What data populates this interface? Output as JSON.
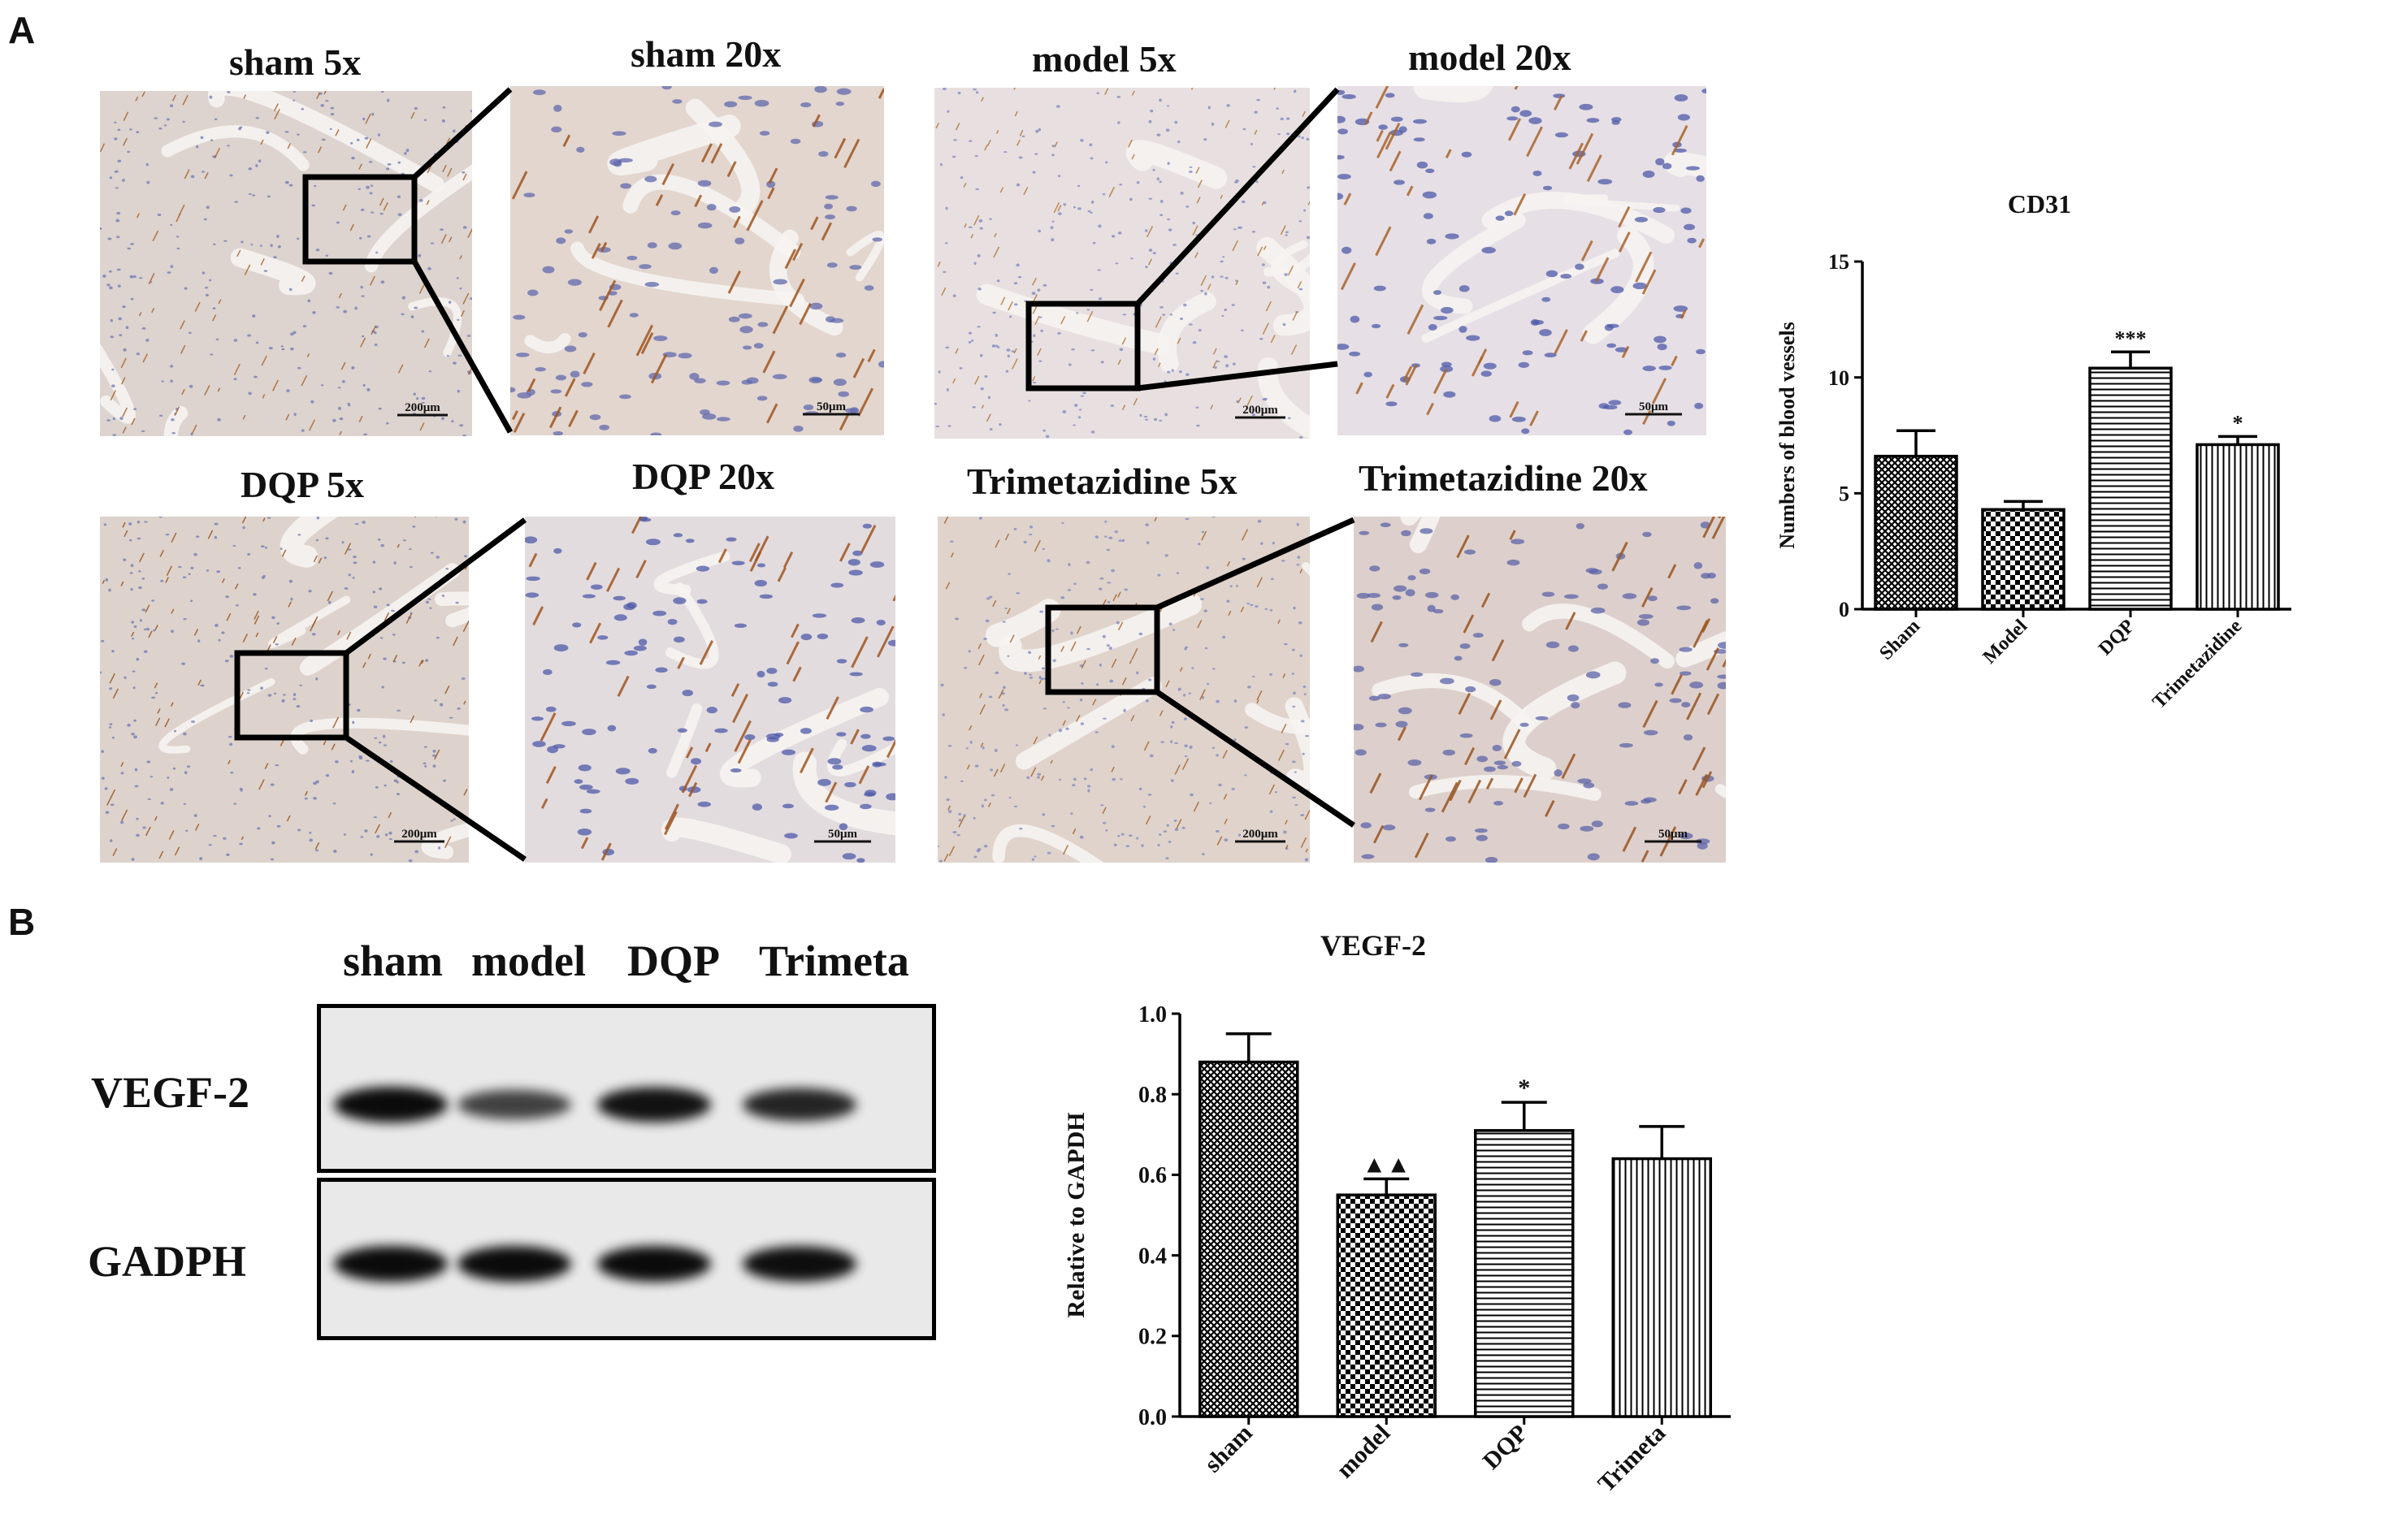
{
  "panel_letters": {
    "a": "A",
    "b": "B"
  },
  "micrographs": [
    {
      "label": "sham 5x",
      "scale": "200μm",
      "tissue": "#ddd3cf",
      "stain": "#a7642a",
      "nuclei": "#6d78b3"
    },
    {
      "label": "sham 20x",
      "scale": "50μm",
      "tissue": "#e2d6cf",
      "stain": "#a0551f",
      "nuclei": "#6068ac"
    },
    {
      "label": "model 5x",
      "scale": "200μm",
      "tissue": "#e8e0e0",
      "stain": "#b07a3e",
      "nuclei": "#7c86bd"
    },
    {
      "label": "model 20x",
      "scale": "50μm",
      "tissue": "#e6dfe5",
      "stain": "#a8642c",
      "nuclei": "#4e5aa8"
    },
    {
      "label": "DQP 5x",
      "scale": "200μm",
      "tissue": "#ddd3cc",
      "stain": "#9a5420",
      "nuclei": "#6d78b3"
    },
    {
      "label": "DQP 20x",
      "scale": "50μm",
      "tissue": "#e3dcdf",
      "stain": "#a0551f",
      "nuclei": "#4e5aa8"
    },
    {
      "label": "Trimetazidine 5x",
      "scale": "200μm",
      "tissue": "#dfd3cc",
      "stain": "#a7642a",
      "nuclei": "#7c86bd"
    },
    {
      "label": "Trimetazidine 20x",
      "scale": "50μm",
      "tissue": "#ddd0cc",
      "stain": "#9a5420",
      "nuclei": "#5c64a8"
    }
  ],
  "western_blot": {
    "lanes": [
      "sham",
      "model",
      "DQP",
      "Trimeta"
    ],
    "bands": [
      {
        "name": "VEGF-2",
        "intensity": [
          1.0,
          0.62,
          0.95,
          0.82
        ]
      },
      {
        "name": "GADPH",
        "intensity": [
          1.0,
          1.0,
          1.0,
          0.98
        ]
      }
    ]
  },
  "chart_data": [
    {
      "type": "bar",
      "title": "CD31",
      "ylabel": "Numbers of blood vessels",
      "xlabel": "",
      "categories": [
        "Sham",
        "Model",
        "DQP",
        "Trimetazidine"
      ],
      "values": [
        6.6,
        4.3,
        10.4,
        7.1
      ],
      "errors": [
        1.1,
        0.35,
        0.7,
        0.35
      ],
      "annotations": [
        "",
        "",
        "***",
        "*"
      ],
      "patterns": [
        "crosshatch",
        "checker",
        "horizontal",
        "vertical"
      ],
      "ylim": [
        0,
        15
      ],
      "yticks": [
        "0",
        "5",
        "10",
        "15"
      ]
    },
    {
      "type": "bar",
      "title": "VEGF-2",
      "ylabel": "Relative  to  GAPDH",
      "xlabel": "",
      "categories": [
        "sham",
        "model",
        "DQP",
        "Trimeta"
      ],
      "values": [
        0.88,
        0.55,
        0.71,
        0.64
      ],
      "errors": [
        0.07,
        0.04,
        0.07,
        0.08
      ],
      "annotations": [
        "",
        "▲▲",
        "*",
        ""
      ],
      "patterns": [
        "crosshatch",
        "checker",
        "horizontal",
        "vertical"
      ],
      "ylim": [
        0,
        1.0
      ],
      "yticks": [
        "0.0",
        "0.2",
        "0.4",
        "0.6",
        "0.8",
        "1.0"
      ]
    }
  ]
}
